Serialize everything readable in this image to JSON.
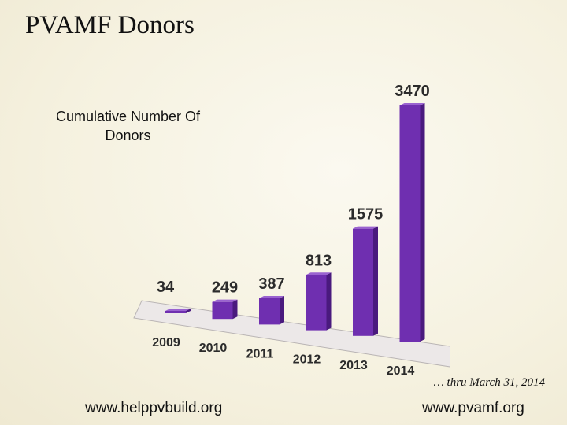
{
  "slide_title": "PVAMF Donors",
  "footnote": "… thru March 31, 2014",
  "links": {
    "left": "www.helppvbuild.org",
    "right": "www.pvamf.org"
  },
  "colors": {
    "bar_front": "#6f2fb0",
    "bar_side": "#4a1a7e",
    "bar_top": "#9a63d0",
    "floor": "#ece8e8"
  },
  "chart_data": {
    "type": "bar",
    "title": "Cumulative Number Of Donors",
    "categories": [
      "2009",
      "2010",
      "2011",
      "2012",
      "2013",
      "2014"
    ],
    "values": [
      34,
      249,
      387,
      813,
      1575,
      3470
    ],
    "value_labels": [
      "34",
      "249",
      "387",
      "813",
      "1575",
      "3470"
    ],
    "xlabel": "",
    "ylabel": "",
    "ylim": [
      0,
      3470
    ],
    "grid": false,
    "legend": "none"
  }
}
